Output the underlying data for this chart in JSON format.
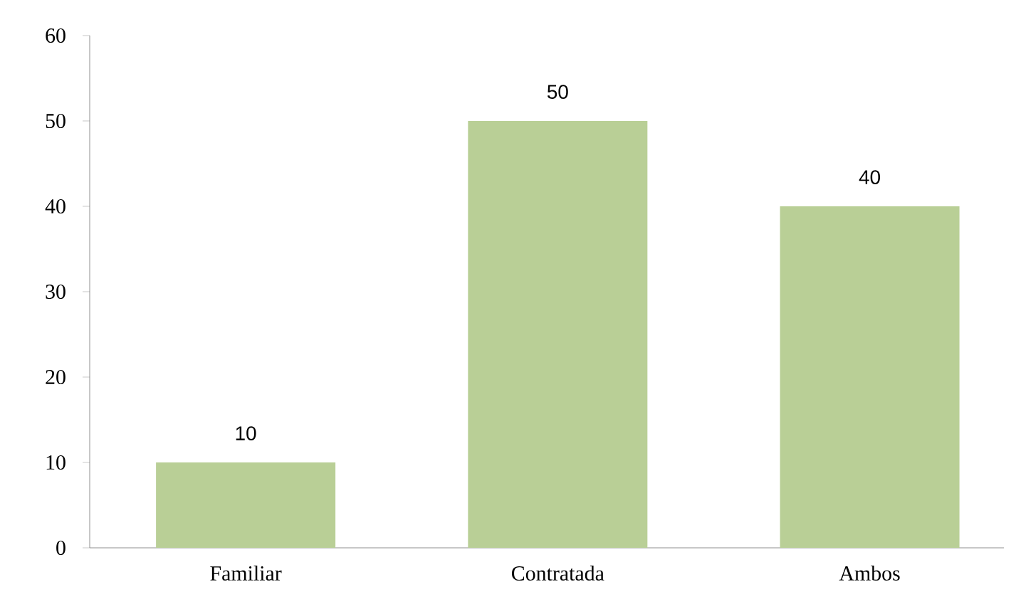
{
  "chart_data": {
    "type": "bar",
    "categories": [
      "Familiar",
      "Contratada",
      "Ambos"
    ],
    "values": [
      10,
      50,
      40
    ],
    "color": "#b9cf96",
    "ylim": [
      0,
      60
    ],
    "yticks": [
      0,
      10,
      20,
      30,
      40,
      50,
      60
    ],
    "data_labels": true,
    "grid": false
  }
}
